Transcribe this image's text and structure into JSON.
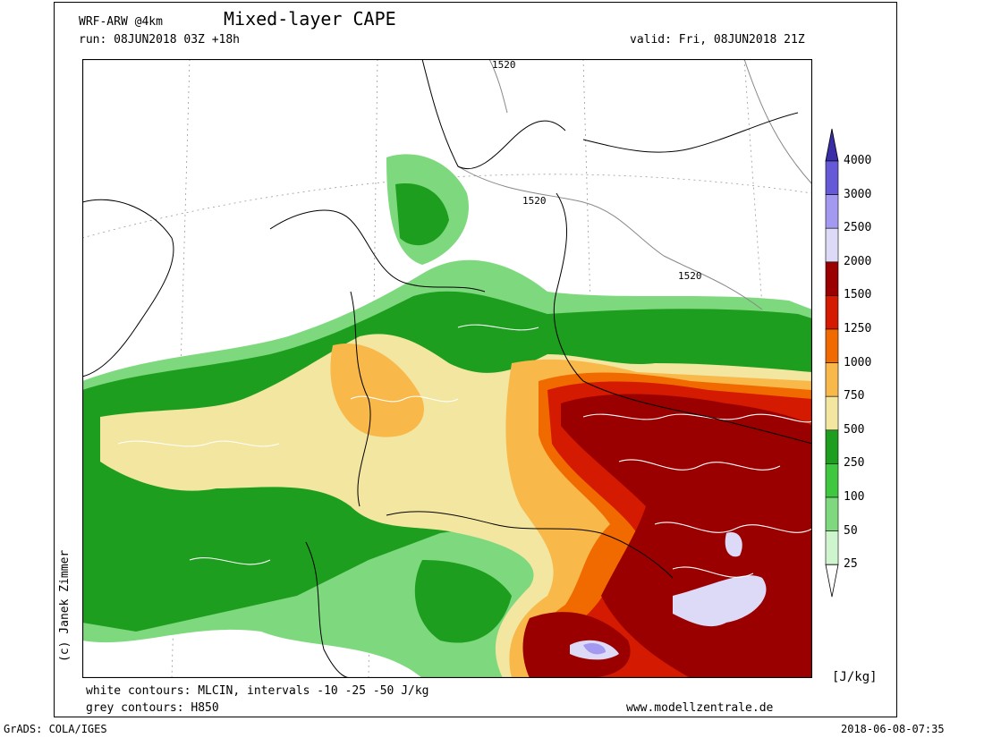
{
  "header": {
    "model": "WRF-ARW @4km",
    "title": "Mixed-layer CAPE",
    "run": "run: 08JUN2018 03Z +18h",
    "valid": "valid: Fri, 08JUN2018 21Z"
  },
  "map": {
    "contour_labels": [
      "1520",
      "1520",
      "1520"
    ]
  },
  "colorbar": {
    "unit": "[J/kg]",
    "levels": [
      "4000",
      "3000",
      "2500",
      "2000",
      "1500",
      "1250",
      "1000",
      "750",
      "500",
      "250",
      "100",
      "50",
      "25"
    ],
    "colors": [
      "#3a2ea8",
      "#6659d8",
      "#a499f0",
      "#dcdaf7",
      "#9b0000",
      "#d41a00",
      "#f06a00",
      "#f8b84a",
      "#f2e6a0",
      "#1e9e1e",
      "#3fc73f",
      "#7ed97e",
      "#cff5cf"
    ]
  },
  "footer": {
    "legend_white": "white contours: MLCIN, intervals -10 -25 -50 J/kg",
    "legend_grey": "grey contours: H850",
    "website": "www.modellzentrale.de",
    "grads": "GrADS: COLA/IGES",
    "timestamp": "2018-06-08-07:35",
    "copyright": "(c) Janek Zimmer"
  }
}
